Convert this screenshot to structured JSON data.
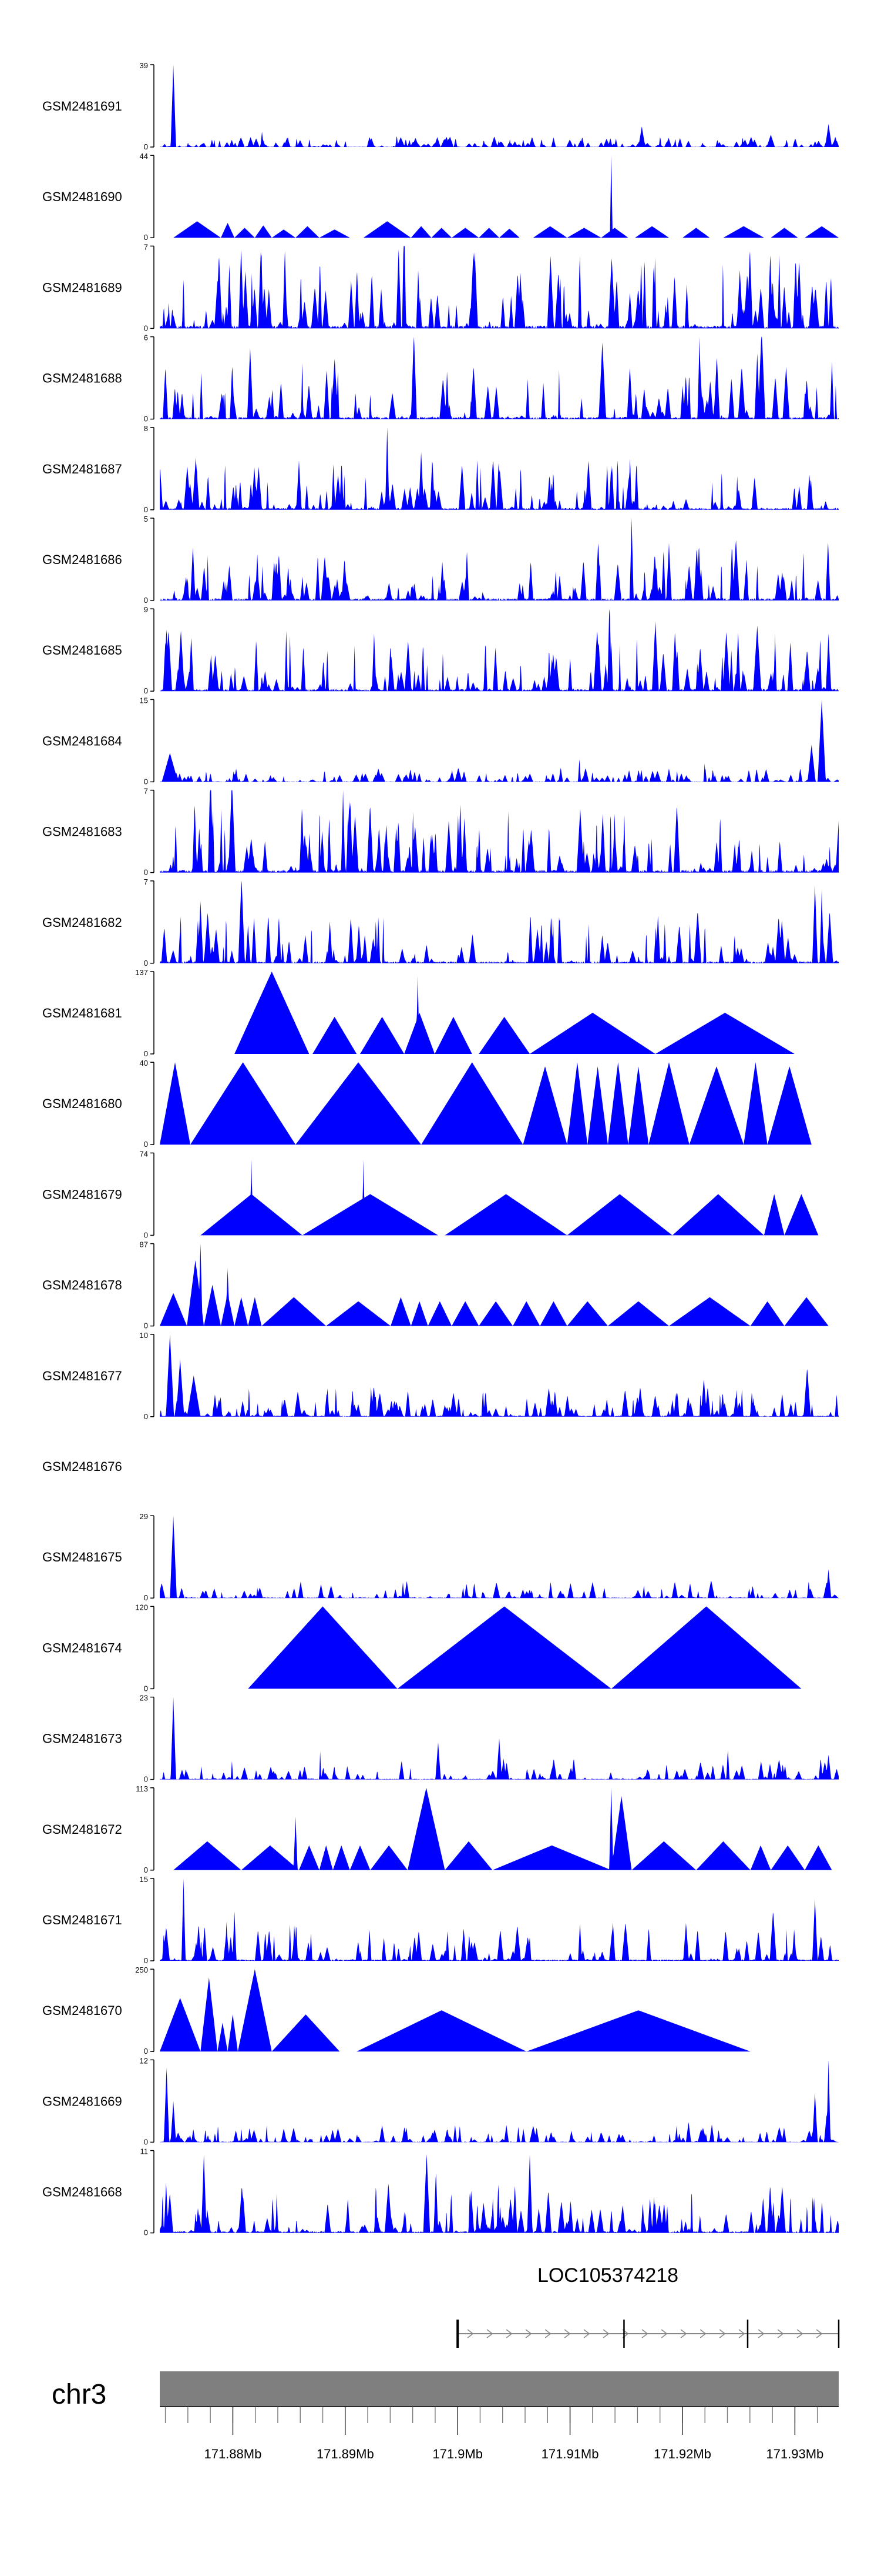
{
  "chart_data": {
    "type": "area",
    "title": "",
    "xlabel": "",
    "ylabel": "",
    "xlim": [
      171.8735,
      171.9339
    ],
    "grid": false,
    "fill_color": "#0000ff",
    "tracks": [
      {
        "name": "GSM2481691",
        "ymax": 39,
        "ymin": 0,
        "density": 260,
        "base": 0.06,
        "peaks": [
          [
            0.02,
            1.0,
            0.004
          ],
          [
            0.355,
            0.12,
            0.006
          ],
          [
            0.71,
            0.25,
            0.005
          ],
          [
            0.9,
            0.15,
            0.006
          ],
          [
            0.985,
            0.28,
            0.005
          ]
        ],
        "tris": []
      },
      {
        "name": "GSM2481690",
        "ymax": 44,
        "ymin": 0,
        "density": 0,
        "base": 0.0,
        "peaks": [
          [
            0.665,
            1.0,
            0.002
          ]
        ],
        "tris": [
          [
            0.02,
            0.09,
            0.2
          ],
          [
            0.09,
            0.11,
            0.18
          ],
          [
            0.11,
            0.14,
            0.12
          ],
          [
            0.14,
            0.165,
            0.15
          ],
          [
            0.165,
            0.2,
            0.1
          ],
          [
            0.2,
            0.235,
            0.14
          ],
          [
            0.235,
            0.28,
            0.1
          ],
          [
            0.3,
            0.34,
            0.09
          ],
          [
            0.3,
            0.37,
            0.2
          ],
          [
            0.37,
            0.4,
            0.14
          ],
          [
            0.4,
            0.43,
            0.12
          ],
          [
            0.43,
            0.47,
            0.12
          ],
          [
            0.47,
            0.5,
            0.12
          ],
          [
            0.5,
            0.53,
            0.11
          ],
          [
            0.55,
            0.6,
            0.14
          ],
          [
            0.6,
            0.65,
            0.12
          ],
          [
            0.65,
            0.69,
            0.12
          ],
          [
            0.7,
            0.75,
            0.14
          ],
          [
            0.77,
            0.81,
            0.12
          ],
          [
            0.83,
            0.89,
            0.14
          ],
          [
            0.9,
            0.94,
            0.12
          ],
          [
            0.95,
            1.0,
            0.14
          ]
        ]
      },
      {
        "name": "GSM2481689",
        "ymax": 7,
        "ymin": 0,
        "density": 170,
        "base": 0.45,
        "peaks": [],
        "tris": []
      },
      {
        "name": "GSM2481688",
        "ymax": 6,
        "ymin": 0,
        "density": 160,
        "base": 0.35,
        "peaks": [
          [
            0.795,
            1.0,
            0.003
          ],
          [
            0.88,
            0.8,
            0.004
          ],
          [
            0.99,
            0.7,
            0.003
          ]
        ],
        "tris": []
      },
      {
        "name": "GSM2481687",
        "ymax": 8,
        "ymin": 0,
        "density": 170,
        "base": 0.3,
        "peaks": [
          [
            0.335,
            1.0,
            0.003
          ],
          [
            0.205,
            0.6,
            0.004
          ],
          [
            0.385,
            0.7,
            0.004
          ]
        ],
        "tris": []
      },
      {
        "name": "GSM2481686",
        "ymax": 5,
        "ymin": 0,
        "density": 170,
        "base": 0.35,
        "peaks": [
          [
            0.695,
            1.0,
            0.003
          ],
          [
            0.75,
            0.7,
            0.004
          ]
        ],
        "tris": []
      },
      {
        "name": "GSM2481685",
        "ymax": 9,
        "ymin": 0,
        "density": 170,
        "base": 0.35,
        "peaks": [
          [
            0.73,
            0.85,
            0.005
          ],
          [
            0.88,
            0.8,
            0.006
          ],
          [
            0.985,
            0.7,
            0.004
          ]
        ],
        "tris": []
      },
      {
        "name": "GSM2481684",
        "ymax": 15,
        "ymin": 0,
        "density": 220,
        "base": 0.08,
        "peaks": [
          [
            0.015,
            0.35,
            0.012
          ],
          [
            0.975,
            1.0,
            0.006
          ],
          [
            0.96,
            0.45,
            0.006
          ]
        ],
        "tris": []
      },
      {
        "name": "GSM2481683",
        "ymax": 7,
        "ymin": 0,
        "density": 170,
        "base": 0.4,
        "peaks": [
          [
            0.27,
            1.0,
            0.003
          ]
        ],
        "tris": []
      },
      {
        "name": "GSM2481682",
        "ymax": 7,
        "ymin": 0,
        "density": 170,
        "base": 0.3,
        "peaks": [
          [
            0.06,
            0.75,
            0.004
          ],
          [
            0.965,
            0.95,
            0.004
          ],
          [
            0.975,
            0.9,
            0.003
          ]
        ],
        "tris": []
      },
      {
        "name": "GSM2481681",
        "ymax": 137,
        "ymin": 0,
        "density": 0,
        "base": 0.0,
        "peaks": [
          [
            0.38,
            0.95,
            0.0025
          ]
        ],
        "tris": [
          [
            0.11,
            0.22,
            1.0
          ],
          [
            0.225,
            0.29,
            0.45
          ],
          [
            0.295,
            0.36,
            0.45
          ],
          [
            0.36,
            0.405,
            0.5
          ],
          [
            0.405,
            0.46,
            0.45
          ],
          [
            0.47,
            0.545,
            0.45
          ],
          [
            0.545,
            0.73,
            0.5
          ],
          [
            0.73,
            0.935,
            0.5
          ]
        ]
      },
      {
        "name": "GSM2481680",
        "ymax": 40,
        "ymin": 0,
        "density": 0,
        "base": 0.0,
        "peaks": [],
        "tris": [
          [
            0.0,
            0.045,
            1.0
          ],
          [
            0.045,
            0.2,
            1.0
          ],
          [
            0.2,
            0.385,
            1.0
          ],
          [
            0.385,
            0.535,
            1.0
          ],
          [
            0.535,
            0.6,
            0.95
          ],
          [
            0.6,
            0.63,
            1.0
          ],
          [
            0.63,
            0.66,
            0.95
          ],
          [
            0.66,
            0.69,
            1.0
          ],
          [
            0.69,
            0.72,
            0.95
          ],
          [
            0.72,
            0.78,
            1.0
          ],
          [
            0.78,
            0.86,
            0.95
          ],
          [
            0.86,
            0.895,
            1.0
          ],
          [
            0.895,
            0.96,
            0.95
          ]
        ]
      },
      {
        "name": "GSM2481679",
        "ymax": 74,
        "ymin": 0,
        "density": 0,
        "base": 0.0,
        "peaks": [
          [
            0.135,
            0.92,
            0.002
          ],
          [
            0.3,
            0.92,
            0.002
          ]
        ],
        "tris": [
          [
            0.06,
            0.21,
            0.5
          ],
          [
            0.21,
            0.41,
            0.5
          ],
          [
            0.42,
            0.6,
            0.5
          ],
          [
            0.6,
            0.755,
            0.5
          ],
          [
            0.755,
            0.89,
            0.5
          ],
          [
            0.89,
            0.92,
            0.5
          ],
          [
            0.92,
            0.97,
            0.5
          ]
        ]
      },
      {
        "name": "GSM2481678",
        "ymax": 87,
        "ymin": 0,
        "density": 0,
        "base": 0.0,
        "peaks": [
          [
            0.06,
            1.0,
            0.003
          ],
          [
            0.1,
            0.7,
            0.003
          ]
        ],
        "tris": [
          [
            0.0,
            0.04,
            0.4
          ],
          [
            0.04,
            0.065,
            0.8
          ],
          [
            0.065,
            0.09,
            0.5
          ],
          [
            0.09,
            0.11,
            0.4
          ],
          [
            0.11,
            0.13,
            0.35
          ],
          [
            0.13,
            0.15,
            0.35
          ],
          [
            0.15,
            0.245,
            0.35
          ],
          [
            0.245,
            0.34,
            0.3
          ],
          [
            0.34,
            0.37,
            0.35
          ],
          [
            0.37,
            0.395,
            0.3
          ],
          [
            0.395,
            0.43,
            0.3
          ],
          [
            0.43,
            0.47,
            0.3
          ],
          [
            0.47,
            0.52,
            0.3
          ],
          [
            0.52,
            0.56,
            0.3
          ],
          [
            0.56,
            0.6,
            0.3
          ],
          [
            0.6,
            0.66,
            0.3
          ],
          [
            0.66,
            0.75,
            0.3
          ],
          [
            0.75,
            0.87,
            0.35
          ],
          [
            0.87,
            0.92,
            0.3
          ],
          [
            0.92,
            0.985,
            0.35
          ]
        ]
      },
      {
        "name": "GSM2481677",
        "ymax": 10,
        "ymin": 0,
        "density": 220,
        "base": 0.18,
        "peaks": [
          [
            0.015,
            1.0,
            0.006
          ],
          [
            0.03,
            0.7,
            0.006
          ],
          [
            0.05,
            0.5,
            0.01
          ]
        ],
        "tris": []
      },
      {
        "name": "GSM2481676",
        "ymax": null,
        "ymin": null,
        "density": 0,
        "base": 0.0,
        "peaks": [],
        "tris": []
      },
      {
        "name": "GSM2481675",
        "ymax": 29,
        "ymin": 0,
        "density": 140,
        "base": 0.1,
        "peaks": [
          [
            0.02,
            1.0,
            0.005
          ],
          [
            0.985,
            0.35,
            0.004
          ]
        ],
        "tris": []
      },
      {
        "name": "GSM2481674",
        "ymax": 120,
        "ymin": 0,
        "density": 0,
        "base": 0.0,
        "peaks": [],
        "tris": [
          [
            0.13,
            0.35,
            1.0
          ],
          [
            0.35,
            0.665,
            1.0
          ],
          [
            0.665,
            0.945,
            1.0
          ]
        ]
      },
      {
        "name": "GSM2481673",
        "ymax": 23,
        "ymin": 0,
        "density": 150,
        "base": 0.12,
        "peaks": [
          [
            0.02,
            1.0,
            0.004
          ],
          [
            0.41,
            0.45,
            0.004
          ],
          [
            0.5,
            0.5,
            0.004
          ],
          [
            0.985,
            0.3,
            0.004
          ]
        ],
        "tris": []
      },
      {
        "name": "GSM2481672",
        "ymax": 113,
        "ymin": 0,
        "density": 0,
        "base": 0.0,
        "peaks": [
          [
            0.2,
            0.65,
            0.003
          ],
          [
            0.665,
            1.0,
            0.003
          ]
        ],
        "tris": [
          [
            0.02,
            0.12,
            0.35
          ],
          [
            0.12,
            0.205,
            0.3
          ],
          [
            0.205,
            0.235,
            0.3
          ],
          [
            0.235,
            0.255,
            0.3
          ],
          [
            0.255,
            0.28,
            0.3
          ],
          [
            0.28,
            0.31,
            0.3
          ],
          [
            0.31,
            0.365,
            0.3
          ],
          [
            0.365,
            0.42,
            1.0
          ],
          [
            0.42,
            0.49,
            0.35
          ],
          [
            0.49,
            0.665,
            0.3
          ],
          [
            0.665,
            0.695,
            0.9
          ],
          [
            0.695,
            0.79,
            0.35
          ],
          [
            0.79,
            0.87,
            0.35
          ],
          [
            0.87,
            0.9,
            0.3
          ],
          [
            0.9,
            0.95,
            0.3
          ],
          [
            0.95,
            0.99,
            0.3
          ]
        ]
      },
      {
        "name": "GSM2481671",
        "ymax": 15,
        "ymin": 0,
        "density": 150,
        "base": 0.22,
        "peaks": [
          [
            0.035,
            1.0,
            0.003
          ],
          [
            0.11,
            0.6,
            0.003
          ],
          [
            0.965,
            0.75,
            0.004
          ]
        ],
        "tris": []
      },
      {
        "name": "GSM2481670",
        "ymax": 250,
        "ymin": 0,
        "density": 0,
        "base": 0.0,
        "peaks": [],
        "tris": [
          [
            0.0,
            0.06,
            0.65
          ],
          [
            0.06,
            0.085,
            0.9
          ],
          [
            0.085,
            0.1,
            0.35
          ],
          [
            0.1,
            0.1,
            0.0
          ],
          [
            0.1,
            0.115,
            0.45
          ],
          [
            0.115,
            0.165,
            1.0
          ],
          [
            0.165,
            0.265,
            0.45
          ],
          [
            0.265,
            0.29,
            0.0
          ],
          [
            0.29,
            0.54,
            0.5
          ],
          [
            0.54,
            0.87,
            0.5
          ]
        ]
      },
      {
        "name": "GSM2481669",
        "ymax": 12,
        "ymin": 0,
        "density": 200,
        "base": 0.1,
        "peaks": [
          [
            0.01,
            0.9,
            0.004
          ],
          [
            0.02,
            0.5,
            0.004
          ],
          [
            0.965,
            0.6,
            0.004
          ],
          [
            0.985,
            1.0,
            0.003
          ]
        ],
        "tris": []
      },
      {
        "name": "GSM2481668",
        "ymax": 11,
        "ymin": 0,
        "density": 180,
        "base": 0.28,
        "peaks": [
          [
            0.065,
            0.95,
            0.004
          ],
          [
            0.545,
            0.95,
            0.004
          ]
        ],
        "tris": []
      }
    ],
    "gene": {
      "label": "LOC105374218",
      "start": 171.9,
      "end": 171.9339,
      "exons": [
        171.9,
        171.9148,
        171.9258,
        171.9339
      ],
      "strand": "+"
    },
    "axis": {
      "chrom_label": "chr3",
      "tick_labels": [
        "171.88Mb",
        "171.89Mb",
        "171.9Mb",
        "171.91Mb",
        "171.92Mb",
        "171.93Mb"
      ],
      "tick_values": [
        171.88,
        171.89,
        171.9,
        171.91,
        171.92,
        171.93
      ],
      "minor_step": 0.002,
      "bar_color": "#7f7f7f"
    }
  }
}
